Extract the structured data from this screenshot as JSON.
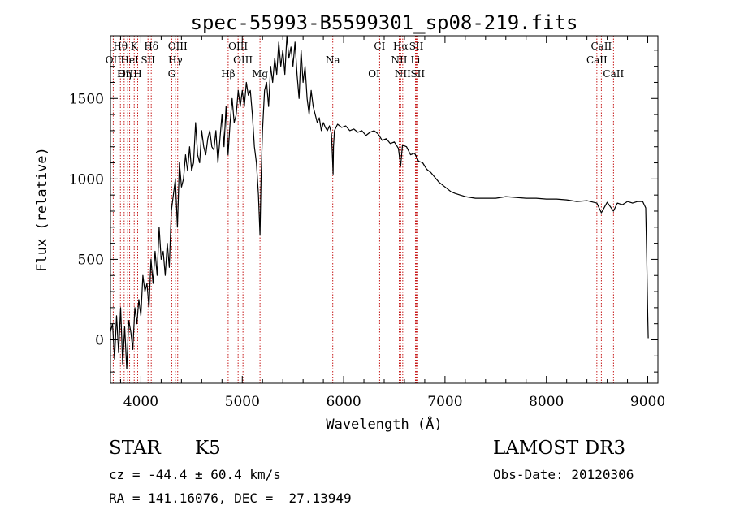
{
  "chart_data": {
    "type": "line",
    "title": "spec-55993-B5599301_sp08-219.fits",
    "xlabel": "Wavelength (Å)",
    "ylabel": "Flux (relative)",
    "xlim": [
      3700,
      9100
    ],
    "ylim": [
      -270,
      1890
    ],
    "x_ticks": [
      4000,
      5000,
      6000,
      7000,
      8000,
      9000
    ],
    "x_tick_labels": [
      "4000",
      "5000",
      "6000",
      "7000",
      "8000",
      "9000"
    ],
    "y_ticks": [
      0,
      500,
      1000,
      1500
    ],
    "y_tick_labels": [
      "0",
      "500",
      "1000",
      "1500"
    ],
    "grid": false,
    "series": [
      {
        "name": "flux",
        "x": [
          3700,
          3720,
          3740,
          3760,
          3780,
          3800,
          3820,
          3840,
          3860,
          3880,
          3900,
          3920,
          3940,
          3960,
          3980,
          4000,
          4020,
          4040,
          4060,
          4080,
          4100,
          4120,
          4140,
          4160,
          4180,
          4200,
          4220,
          4240,
          4260,
          4280,
          4300,
          4320,
          4340,
          4360,
          4380,
          4400,
          4420,
          4440,
          4460,
          4480,
          4500,
          4520,
          4540,
          4560,
          4580,
          4600,
          4620,
          4640,
          4660,
          4680,
          4700,
          4720,
          4740,
          4760,
          4780,
          4800,
          4820,
          4840,
          4860,
          4880,
          4900,
          4920,
          4940,
          4960,
          4980,
          5000,
          5020,
          5040,
          5060,
          5080,
          5100,
          5120,
          5140,
          5160,
          5175,
          5185,
          5200,
          5220,
          5240,
          5260,
          5280,
          5300,
          5320,
          5340,
          5360,
          5380,
          5400,
          5420,
          5440,
          5460,
          5480,
          5500,
          5520,
          5540,
          5560,
          5580,
          5600,
          5620,
          5640,
          5660,
          5680,
          5700,
          5720,
          5740,
          5760,
          5780,
          5800,
          5820,
          5840,
          5860,
          5880,
          5892,
          5896,
          5900,
          5910,
          5940,
          5980,
          6020,
          6060,
          6100,
          6140,
          6180,
          6220,
          6260,
          6300,
          6340,
          6380,
          6420,
          6460,
          6500,
          6540,
          6563,
          6580,
          6620,
          6660,
          6700,
          6740,
          6780,
          6820,
          6860,
          6900,
          6940,
          6980,
          7020,
          7060,
          7100,
          7150,
          7200,
          7300,
          7400,
          7500,
          7600,
          7700,
          7800,
          7900,
          8000,
          8100,
          8200,
          8300,
          8400,
          8498,
          8542,
          8600,
          8662,
          8700,
          8750,
          8800,
          8850,
          8900,
          8950,
          8980,
          8990,
          9000,
          9005
        ],
        "values": [
          50,
          100,
          -120,
          150,
          -80,
          200,
          -150,
          80,
          -180,
          120,
          50,
          -60,
          200,
          100,
          250,
          150,
          400,
          300,
          350,
          200,
          500,
          350,
          550,
          400,
          700,
          500,
          550,
          400,
          600,
          450,
          800,
          900,
          1000,
          700,
          1100,
          950,
          1000,
          1150,
          1050,
          1200,
          1050,
          1100,
          1350,
          1150,
          1100,
          1300,
          1200,
          1150,
          1250,
          1300,
          1200,
          1180,
          1300,
          1100,
          1250,
          1400,
          1200,
          1450,
          1150,
          1350,
          1500,
          1350,
          1400,
          1550,
          1450,
          1550,
          1450,
          1600,
          1520,
          1550,
          1400,
          1200,
          1100,
          900,
          650,
          1000,
          1300,
          1550,
          1600,
          1450,
          1700,
          1600,
          1750,
          1650,
          1850,
          1700,
          1800,
          1650,
          1900,
          1750,
          1820,
          1700,
          1850,
          1650,
          1500,
          1800,
          1600,
          1700,
          1500,
          1400,
          1550,
          1450,
          1400,
          1350,
          1380,
          1300,
          1350,
          1320,
          1300,
          1330,
          1280,
          1100,
          1030,
          1200,
          1300,
          1340,
          1320,
          1330,
          1300,
          1310,
          1290,
          1300,
          1270,
          1290,
          1300,
          1280,
          1240,
          1250,
          1220,
          1230,
          1190,
          1080,
          1210,
          1200,
          1150,
          1160,
          1110,
          1100,
          1060,
          1040,
          1010,
          980,
          960,
          940,
          920,
          910,
          900,
          890,
          880,
          880,
          880,
          890,
          885,
          880,
          880,
          875,
          875,
          870,
          860,
          865,
          850,
          790,
          855,
          800,
          850,
          840,
          860,
          850,
          860,
          860,
          820,
          500,
          150,
          10
        ]
      }
    ],
    "lines_near_top": [
      {
        "label": "Hθ",
        "x": 3798
      },
      {
        "label": "K",
        "x": 3934
      },
      {
        "label": "Hδ",
        "x": 4102
      },
      {
        "label": "OIII",
        "x": 4363
      },
      {
        "label": "OIII",
        "x": 4959
      },
      {
        "label": "CI",
        "x": 6355
      },
      {
        "label": "Hα",
        "x": 6563
      },
      {
        "label": "SII",
        "x": 6717
      },
      {
        "label": "CaII",
        "x": 8542
      }
    ],
    "lines_middle": [
      {
        "label": "OII",
        "x": 3727
      },
      {
        "label": "HeI",
        "x": 3889
      },
      {
        "label": "SII",
        "x": 4070
      },
      {
        "label": "Hγ",
        "x": 4340
      },
      {
        "label": "OIII",
        "x": 5007
      },
      {
        "label": "Na",
        "x": 5893
      },
      {
        "label": "NII",
        "x": 6548
      },
      {
        "label": "Li",
        "x": 6708
      },
      {
        "label": "CaII",
        "x": 8498
      }
    ],
    "lines_low": [
      {
        "label": "OIII",
        "x": 3869
      },
      {
        "label": "Hη",
        "x": 3835
      },
      {
        "label": "H",
        "x": 3968
      },
      {
        "label": "G",
        "x": 4304
      },
      {
        "label": "Hβ",
        "x": 4861
      },
      {
        "label": "Mg",
        "x": 5175
      },
      {
        "label": "OI",
        "x": 6300
      },
      {
        "label": "NII",
        "x": 6583
      },
      {
        "label": "SII",
        "x": 6731
      },
      {
        "label": "CaII",
        "x": 8662
      }
    ]
  },
  "info": {
    "object_class": "STAR",
    "subclass": "K5",
    "survey": "LAMOST DR3",
    "redshift": "cz = -44.4 ± 60.4 km/s",
    "obs_date": "Obs-Date: 20120306",
    "coords": "RA = 141.16076, DEC =  27.13949"
  }
}
